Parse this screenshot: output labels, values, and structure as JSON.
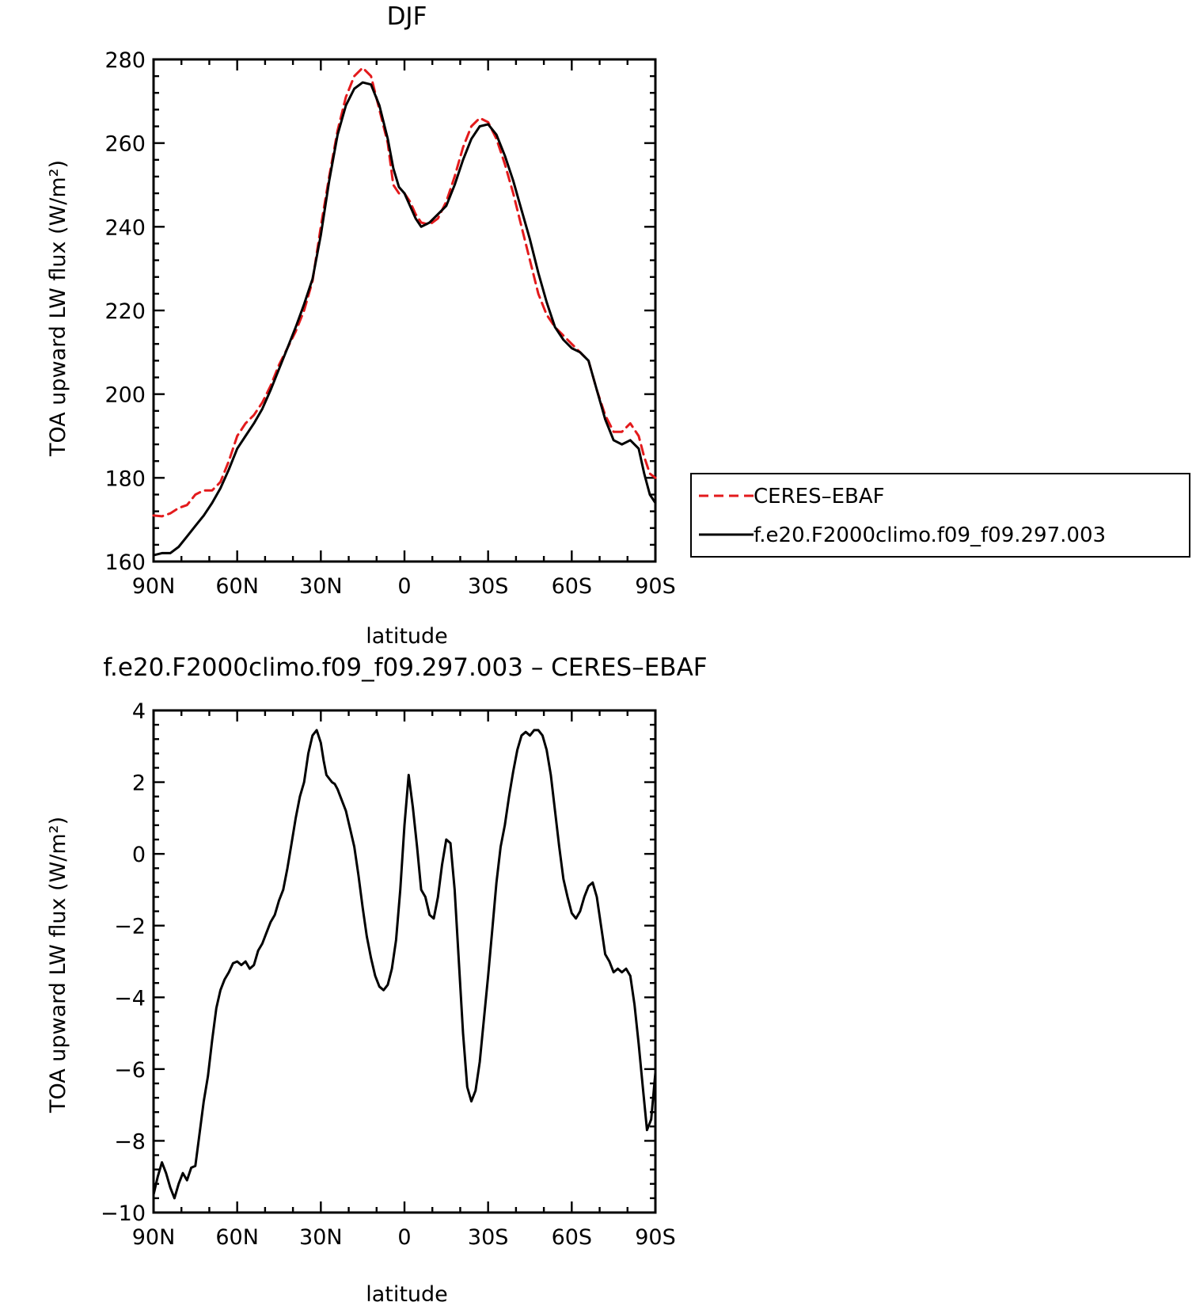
{
  "chart_data": [
    {
      "type": "line",
      "title": "DJF",
      "xlabel": "latitude",
      "ylabel": "TOA upward LW flux (W/m²)",
      "xlim": [
        -90,
        90
      ],
      "ylim": [
        160,
        280
      ],
      "x_ticks": [
        -90,
        -60,
        -30,
        0,
        30,
        60,
        90
      ],
      "x_tick_labels": [
        "90N",
        "60N",
        "30N",
        "0",
        "30S",
        "60S",
        "90S"
      ],
      "y_ticks": [
        160,
        180,
        200,
        220,
        240,
        260,
        280
      ],
      "y_tick_labels": [
        "160",
        "180",
        "200",
        "220",
        "240",
        "260",
        "280"
      ],
      "grid": false,
      "legend_position": "right-outside",
      "series": [
        {
          "name": "CERES–EBAF",
          "color": "#e31a1c",
          "dash": "dashed",
          "points": [
            [
              -90,
              171
            ],
            [
              -87,
              170.8
            ],
            [
              -84,
              171.5
            ],
            [
              -81,
              172.8
            ],
            [
              -78,
              173.5
            ],
            [
              -75,
              176
            ],
            [
              -72,
              177
            ],
            [
              -69,
              177
            ],
            [
              -66,
              179
            ],
            [
              -63,
              184
            ],
            [
              -60,
              190
            ],
            [
              -57,
              193
            ],
            [
              -54,
              195
            ],
            [
              -51,
              198
            ],
            [
              -48,
              202
            ],
            [
              -45,
              207
            ],
            [
              -42,
              211
            ],
            [
              -39,
              215
            ],
            [
              -36,
              220
            ],
            [
              -33,
              227
            ],
            [
              -30,
              240
            ],
            [
              -27,
              252
            ],
            [
              -24,
              263
            ],
            [
              -21,
              271
            ],
            [
              -18,
              276
            ],
            [
              -15,
              278
            ],
            [
              -12,
              276
            ],
            [
              -9,
              268
            ],
            [
              -6,
              260
            ],
            [
              -4,
              250
            ],
            [
              -2,
              248
            ],
            [
              0,
              248
            ],
            [
              2,
              246
            ],
            [
              4,
              243
            ],
            [
              6,
              241
            ],
            [
              9,
              240.5
            ],
            [
              12,
              242
            ],
            [
              15,
              246
            ],
            [
              18,
              252
            ],
            [
              21,
              259
            ],
            [
              24,
              264
            ],
            [
              27,
              266
            ],
            [
              30,
              265
            ],
            [
              33,
              261
            ],
            [
              36,
              255
            ],
            [
              39,
              248
            ],
            [
              42,
              240
            ],
            [
              45,
              232
            ],
            [
              48,
              224
            ],
            [
              51,
              219
            ],
            [
              54,
              216
            ],
            [
              57,
              214
            ],
            [
              60,
              212
            ],
            [
              63,
              210
            ],
            [
              66,
              208
            ],
            [
              69,
              201
            ],
            [
              72,
              195
            ],
            [
              75,
              191
            ],
            [
              78,
              191
            ],
            [
              81,
              193
            ],
            [
              84,
              190
            ],
            [
              86,
              185
            ],
            [
              88,
              181
            ],
            [
              90,
              180
            ]
          ]
        },
        {
          "name": "f.e20.F2000climo.f09_f09.297.003",
          "color": "#000000",
          "dash": "solid",
          "points": [
            [
              -90,
              161.5
            ],
            [
              -87,
              162
            ],
            [
              -84,
              162
            ],
            [
              -81,
              163.5
            ],
            [
              -78,
              166
            ],
            [
              -75,
              168.5
            ],
            [
              -72,
              171
            ],
            [
              -69,
              174
            ],
            [
              -66,
              177.5
            ],
            [
              -63,
              182
            ],
            [
              -60,
              187
            ],
            [
              -57,
              190
            ],
            [
              -54,
              193
            ],
            [
              -51,
              196.5
            ],
            [
              -48,
              201
            ],
            [
              -45,
              206
            ],
            [
              -42,
              211
            ],
            [
              -39,
              216
            ],
            [
              -36,
              221.5
            ],
            [
              -33,
              227.5
            ],
            [
              -30,
              238
            ],
            [
              -27,
              251
            ],
            [
              -24,
              262
            ],
            [
              -21,
              269
            ],
            [
              -18,
              273
            ],
            [
              -15,
              274.5
            ],
            [
              -12,
              274
            ],
            [
              -9,
              269
            ],
            [
              -6,
              261
            ],
            [
              -4,
              254
            ],
            [
              -2,
              249.5
            ],
            [
              0,
              248
            ],
            [
              2,
              245
            ],
            [
              4,
              242
            ],
            [
              6,
              240
            ],
            [
              9,
              241
            ],
            [
              12,
              243
            ],
            [
              15,
              245
            ],
            [
              18,
              250
            ],
            [
              21,
              256
            ],
            [
              24,
              261
            ],
            [
              27,
              264
            ],
            [
              30,
              264.5
            ],
            [
              33,
              262
            ],
            [
              36,
              257
            ],
            [
              39,
              251
            ],
            [
              42,
              244
            ],
            [
              45,
              237
            ],
            [
              48,
              229
            ],
            [
              51,
              222
            ],
            [
              54,
              216
            ],
            [
              57,
              213
            ],
            [
              60,
              211
            ],
            [
              63,
              210
            ],
            [
              66,
              208
            ],
            [
              69,
              201
            ],
            [
              72,
              194
            ],
            [
              75,
              189
            ],
            [
              78,
              188
            ],
            [
              81,
              189
            ],
            [
              84,
              187
            ],
            [
              86,
              181
            ],
            [
              88,
              176
            ],
            [
              90,
              174
            ]
          ]
        }
      ]
    },
    {
      "type": "line",
      "title": "f.e20.F2000climo.f09_f09.297.003 – CERES–EBAF",
      "xlabel": "latitude",
      "ylabel": "TOA upward LW flux (W/m²)",
      "xlim": [
        -90,
        90
      ],
      "ylim": [
        -10,
        4
      ],
      "x_ticks": [
        -90,
        -60,
        -30,
        0,
        30,
        60,
        90
      ],
      "x_tick_labels": [
        "90N",
        "60N",
        "30N",
        "0",
        "30S",
        "60S",
        "90S"
      ],
      "y_ticks": [
        -10,
        -8,
        -6,
        -4,
        -2,
        0,
        2,
        4
      ],
      "y_tick_labels": [
        "−10",
        "−8",
        "−6",
        "−4",
        "−2",
        "0",
        "2",
        "4"
      ],
      "grid": false,
      "series": [
        {
          "color": "#000000",
          "dash": "solid",
          "points": [
            [
              -90,
              -9.5
            ],
            [
              -88.5,
              -9
            ],
            [
              -87,
              -8.6
            ],
            [
              -85.5,
              -8.9
            ],
            [
              -84,
              -9.3
            ],
            [
              -82.5,
              -9.6
            ],
            [
              -81,
              -9.2
            ],
            [
              -79.5,
              -8.9
            ],
            [
              -78,
              -9.1
            ],
            [
              -76.5,
              -8.75
            ],
            [
              -75,
              -8.7
            ],
            [
              -73.5,
              -7.8
            ],
            [
              -72,
              -6.9
            ],
            [
              -70.5,
              -6.2
            ],
            [
              -69,
              -5.2
            ],
            [
              -67.5,
              -4.3
            ],
            [
              -66,
              -3.8
            ],
            [
              -64.5,
              -3.5
            ],
            [
              -63,
              -3.3
            ],
            [
              -61.5,
              -3.05
            ],
            [
              -60,
              -3
            ],
            [
              -58.5,
              -3.1
            ],
            [
              -57,
              -3
            ],
            [
              -55.5,
              -3.2
            ],
            [
              -54,
              -3.1
            ],
            [
              -52.5,
              -2.7
            ],
            [
              -51,
              -2.5
            ],
            [
              -49.5,
              -2.2
            ],
            [
              -48,
              -1.9
            ],
            [
              -46.5,
              -1.7
            ],
            [
              -45,
              -1.3
            ],
            [
              -43.5,
              -1.0
            ],
            [
              -42,
              -0.4
            ],
            [
              -40.5,
              0.3
            ],
            [
              -39,
              1.0
            ],
            [
              -37.5,
              1.6
            ],
            [
              -36,
              2.0
            ],
            [
              -34.5,
              2.8
            ],
            [
              -33,
              3.3
            ],
            [
              -31.5,
              3.45
            ],
            [
              -30,
              3.1
            ],
            [
              -29,
              2.6
            ],
            [
              -28,
              2.2
            ],
            [
              -26,
              2.0
            ],
            [
              -25,
              1.95
            ],
            [
              -24,
              1.8
            ],
            [
              -23,
              1.6
            ],
            [
              -21,
              1.2
            ],
            [
              -19.5,
              0.7
            ],
            [
              -18,
              0.2
            ],
            [
              -16.5,
              -0.6
            ],
            [
              -15,
              -1.5
            ],
            [
              -13.5,
              -2.3
            ],
            [
              -12,
              -2.9
            ],
            [
              -10.5,
              -3.4
            ],
            [
              -9,
              -3.7
            ],
            [
              -7.5,
              -3.8
            ],
            [
              -6,
              -3.65
            ],
            [
              -4.5,
              -3.2
            ],
            [
              -3,
              -2.4
            ],
            [
              -1.5,
              -1.0
            ],
            [
              0,
              0.8
            ],
            [
              1.5,
              2.2
            ],
            [
              3,
              1.3
            ],
            [
              4.5,
              0.2
            ],
            [
              6,
              -1.0
            ],
            [
              7.5,
              -1.2
            ],
            [
              9,
              -1.7
            ],
            [
              10.5,
              -1.8
            ],
            [
              12,
              -1.2
            ],
            [
              13.5,
              -0.3
            ],
            [
              15,
              0.4
            ],
            [
              16.5,
              0.3
            ],
            [
              18,
              -1.0
            ],
            [
              19.5,
              -3.0
            ],
            [
              21,
              -5.0
            ],
            [
              22.5,
              -6.5
            ],
            [
              24,
              -6.9
            ],
            [
              25.5,
              -6.6
            ],
            [
              27,
              -5.8
            ],
            [
              28.5,
              -4.6
            ],
            [
              30,
              -3.4
            ],
            [
              31.5,
              -2.1
            ],
            [
              33,
              -0.8
            ],
            [
              34.5,
              0.2
            ],
            [
              36,
              0.8
            ],
            [
              37.5,
              1.6
            ],
            [
              39,
              2.3
            ],
            [
              40.5,
              2.9
            ],
            [
              42,
              3.3
            ],
            [
              43.5,
              3.4
            ],
            [
              45,
              3.3
            ],
            [
              46.5,
              3.45
            ],
            [
              48,
              3.45
            ],
            [
              49.5,
              3.3
            ],
            [
              51,
              2.9
            ],
            [
              52.5,
              2.2
            ],
            [
              54,
              1.2
            ],
            [
              55.5,
              0.2
            ],
            [
              57,
              -0.7
            ],
            [
              58.5,
              -1.2
            ],
            [
              60,
              -1.65
            ],
            [
              61.5,
              -1.8
            ],
            [
              63,
              -1.6
            ],
            [
              64.5,
              -1.2
            ],
            [
              66,
              -0.9
            ],
            [
              67.5,
              -0.8
            ],
            [
              69,
              -1.2
            ],
            [
              70.5,
              -2.0
            ],
            [
              72,
              -2.8
            ],
            [
              73.5,
              -3.0
            ],
            [
              75,
              -3.3
            ],
            [
              76.5,
              -3.2
            ],
            [
              78,
              -3.3
            ],
            [
              79.5,
              -3.2
            ],
            [
              81,
              -3.4
            ],
            [
              82.5,
              -4.2
            ],
            [
              84,
              -5.3
            ],
            [
              85.5,
              -6.5
            ],
            [
              87,
              -7.7
            ],
            [
              88.5,
              -7.4
            ],
            [
              90,
              -6.1
            ]
          ]
        }
      ]
    }
  ]
}
